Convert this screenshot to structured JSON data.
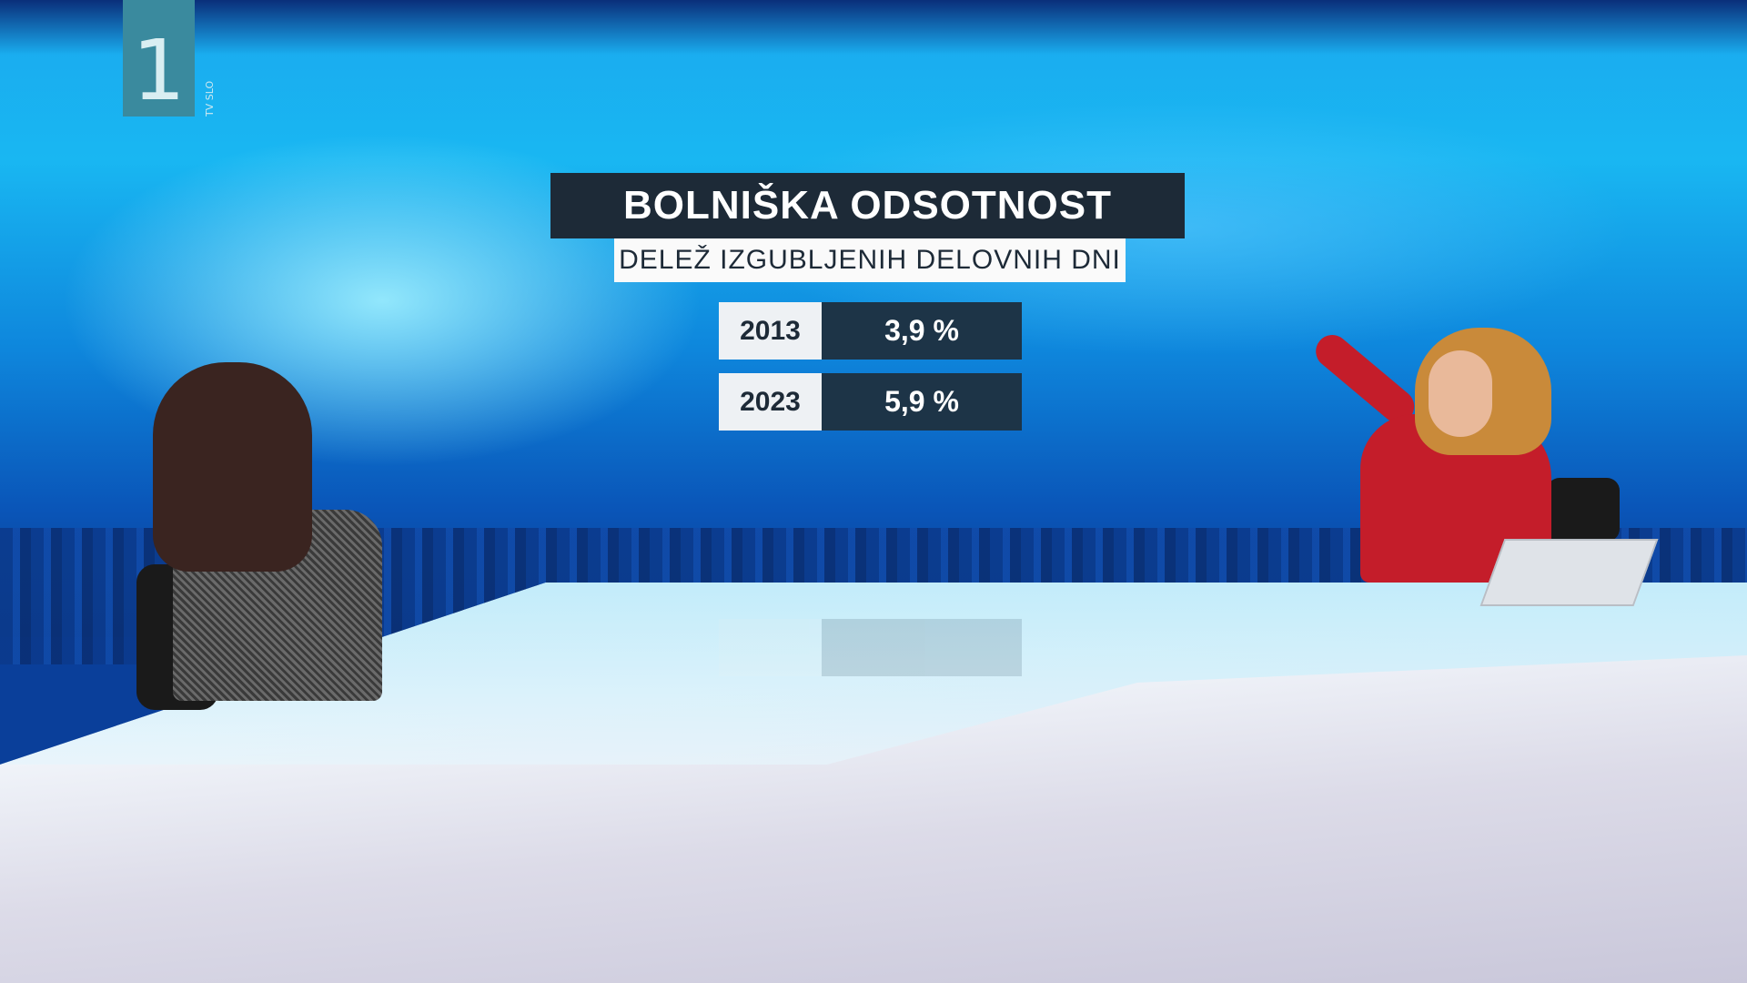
{
  "channel_logo": {
    "number": "1",
    "side_text": "TV SLO"
  },
  "graphic": {
    "title": "BOLNIŠKA ODSOTNOST",
    "subtitle": "DELEŽ IZGUBLJENIH DELOVNIH DNI",
    "rows": [
      {
        "year": "2013",
        "value": "3,9 %"
      },
      {
        "year": "2023",
        "value": "5,9 %"
      }
    ]
  },
  "colors": {
    "title_bg": "#1d2a37",
    "value_bg": "#1d3447",
    "presenter_jacket": "#c41d2a",
    "wall_blue": "#19b7f2"
  }
}
